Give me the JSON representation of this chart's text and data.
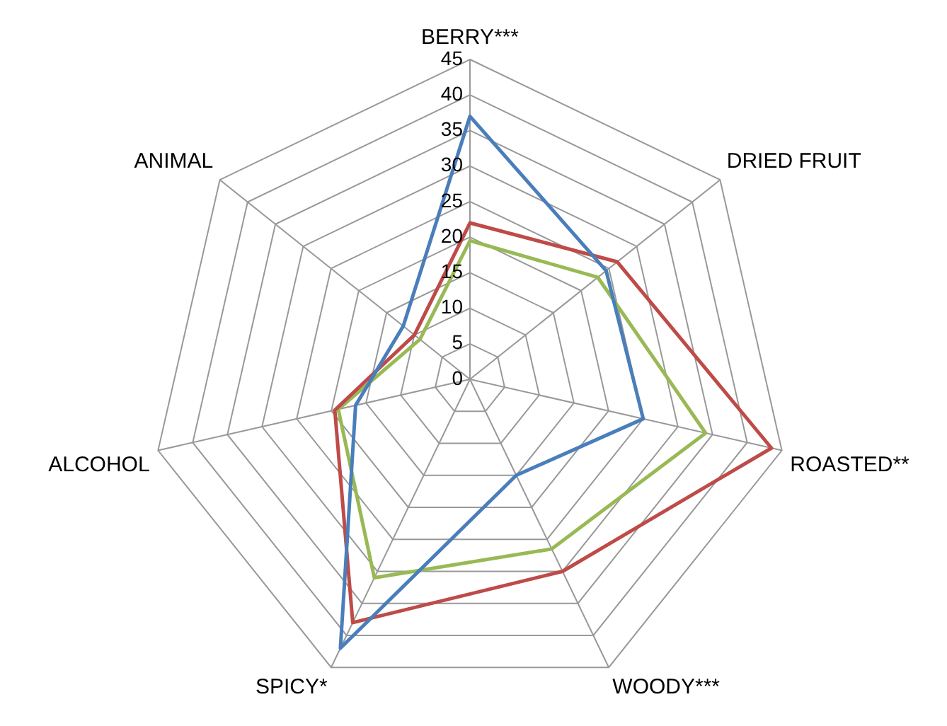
{
  "chart_data": {
    "type": "radar",
    "categories": [
      "BERRY***",
      "DRIED FRUIT",
      "ROASTED**",
      "WOODY***",
      "SPICY*",
      "ALCOHOL",
      "ANIMAL"
    ],
    "series": [
      {
        "color": "#4a7ebb",
        "values": [
          37,
          24.5,
          25,
          15,
          42,
          16.5,
          12
        ]
      },
      {
        "color": "#be4b48",
        "values": [
          22,
          26.5,
          43.5,
          30,
          38,
          19.5,
          10
        ]
      },
      {
        "color": "#98b954",
        "values": [
          19.5,
          23,
          34,
          26.5,
          31,
          19,
          9
        ]
      }
    ],
    "ylim": [
      0,
      45
    ],
    "yticks": [
      0,
      5,
      10,
      15,
      20,
      25,
      30,
      35,
      40,
      45
    ],
    "grid": true,
    "marker": "none",
    "line_style": "solid"
  }
}
